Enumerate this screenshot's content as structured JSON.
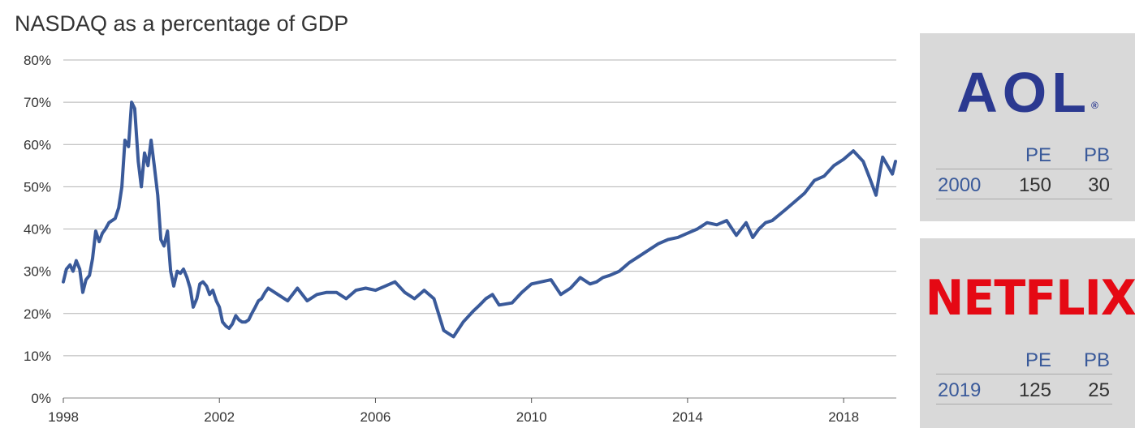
{
  "title": "NASDAQ as a percentage of GDP",
  "chart_data": {
    "type": "line",
    "title": "NASDAQ as a percentage of GDP",
    "xlabel": "",
    "ylabel": "",
    "xlim": [
      1998,
      2019.35
    ],
    "ylim": [
      0,
      80
    ],
    "y_ticks": [
      "0%",
      "10%",
      "20%",
      "30%",
      "40%",
      "50%",
      "60%",
      "70%",
      "80%"
    ],
    "x_ticks": [
      "1998",
      "2002",
      "2006",
      "2010",
      "2014",
      "2018"
    ],
    "grid": "horizontal",
    "line_color": "#3a5a9a",
    "series": [
      {
        "name": "",
        "x": [
          1998.0,
          1998.08,
          1998.17,
          1998.25,
          1998.33,
          1998.42,
          1998.5,
          1998.58,
          1998.67,
          1998.75,
          1998.83,
          1998.92,
          1999.0,
          1999.08,
          1999.17,
          1999.25,
          1999.33,
          1999.42,
          1999.5,
          1999.58,
          1999.67,
          1999.75,
          1999.83,
          1999.92,
          2000.0,
          2000.08,
          2000.17,
          2000.25,
          2000.33,
          2000.42,
          2000.5,
          2000.58,
          2000.67,
          2000.75,
          2000.83,
          2000.92,
          2001.0,
          2001.08,
          2001.17,
          2001.25,
          2001.33,
          2001.42,
          2001.5,
          2001.58,
          2001.67,
          2001.75,
          2001.83,
          2001.92,
          2002.0,
          2002.08,
          2002.17,
          2002.25,
          2002.33,
          2002.42,
          2002.5,
          2002.58,
          2002.67,
          2002.75,
          2002.83,
          2002.92,
          2003.0,
          2003.08,
          2003.17,
          2003.25,
          2003.5,
          2003.75,
          2004.0,
          2004.25,
          2004.5,
          2004.75,
          2005.0,
          2005.25,
          2005.5,
          2005.75,
          2006.0,
          2006.25,
          2006.5,
          2006.75,
          2007.0,
          2007.25,
          2007.5,
          2007.75,
          2007.83,
          2008.0,
          2008.25,
          2008.5,
          2008.67,
          2008.83,
          2009.0,
          2009.17,
          2009.5,
          2009.75,
          2010.0,
          2010.25,
          2010.5,
          2010.75,
          2011.0,
          2011.25,
          2011.5,
          2011.67,
          2011.83,
          2012.0,
          2012.25,
          2012.5,
          2012.75,
          2013.0,
          2013.25,
          2013.5,
          2013.75,
          2014.0,
          2014.25,
          2014.5,
          2014.75,
          2015.0,
          2015.25,
          2015.5,
          2015.67,
          2015.83,
          2016.0,
          2016.17,
          2016.5,
          2016.75,
          2017.0,
          2017.25,
          2017.5,
          2017.75,
          2018.0,
          2018.25,
          2018.5,
          2018.67,
          2018.83,
          2018.92,
          2019.0,
          2019.25,
          2019.33
        ],
        "values": [
          27.5,
          30.5,
          31.5,
          30.0,
          32.5,
          30.5,
          25.0,
          28.0,
          29.0,
          33.0,
          39.5,
          37.0,
          39.0,
          40.0,
          41.5,
          42.0,
          42.5,
          45.0,
          50.0,
          61.0,
          59.5,
          70.0,
          68.5,
          56.0,
          50.0,
          58.0,
          55.0,
          61.0,
          55.0,
          48.0,
          37.5,
          36.0,
          39.5,
          30.0,
          26.5,
          30.0,
          29.5,
          30.5,
          28.5,
          26.0,
          21.5,
          23.5,
          27.0,
          27.5,
          26.5,
          24.5,
          25.5,
          23.0,
          21.5,
          18.0,
          17.0,
          16.5,
          17.5,
          19.5,
          18.5,
          18.0,
          18.0,
          18.5,
          20.0,
          21.5,
          23.0,
          23.5,
          25.0,
          26.0,
          24.5,
          23.0,
          26.0,
          23.0,
          24.5,
          25.0,
          25.0,
          23.5,
          25.5,
          26.0,
          25.5,
          26.5,
          27.5,
          25.0,
          23.5,
          25.5,
          23.5,
          16.0,
          15.5,
          14.5,
          18.0,
          20.5,
          22.0,
          23.5,
          24.5,
          22.0,
          22.5,
          25.0,
          27.0,
          27.5,
          28.0,
          24.5,
          26.0,
          28.5,
          27.0,
          27.5,
          28.5,
          29.0,
          30.0,
          32.0,
          33.5,
          35.0,
          36.5,
          37.5,
          38.0,
          39.0,
          40.0,
          41.5,
          41.0,
          42.0,
          38.5,
          41.5,
          38.0,
          40.0,
          41.5,
          42.0,
          44.5,
          46.5,
          48.5,
          51.5,
          52.5,
          55.0,
          56.5,
          58.5,
          56.0,
          52.0,
          48.0,
          53.0,
          57.0,
          53.0,
          56.0
        ]
      }
    ]
  },
  "panels": [
    {
      "logo": "AOL",
      "logo_mark": "®",
      "logo_color": "#2b3990",
      "headers": {
        "pe": "PE",
        "pb": "PB"
      },
      "row": {
        "year": "2000",
        "pe": "150",
        "pb": "30"
      }
    },
    {
      "logo": "NETFLIX",
      "logo_color": "#e50914",
      "headers": {
        "pe": "PE",
        "pb": "PB"
      },
      "row": {
        "year": "2019",
        "pe": "125",
        "pb": "25"
      }
    }
  ]
}
